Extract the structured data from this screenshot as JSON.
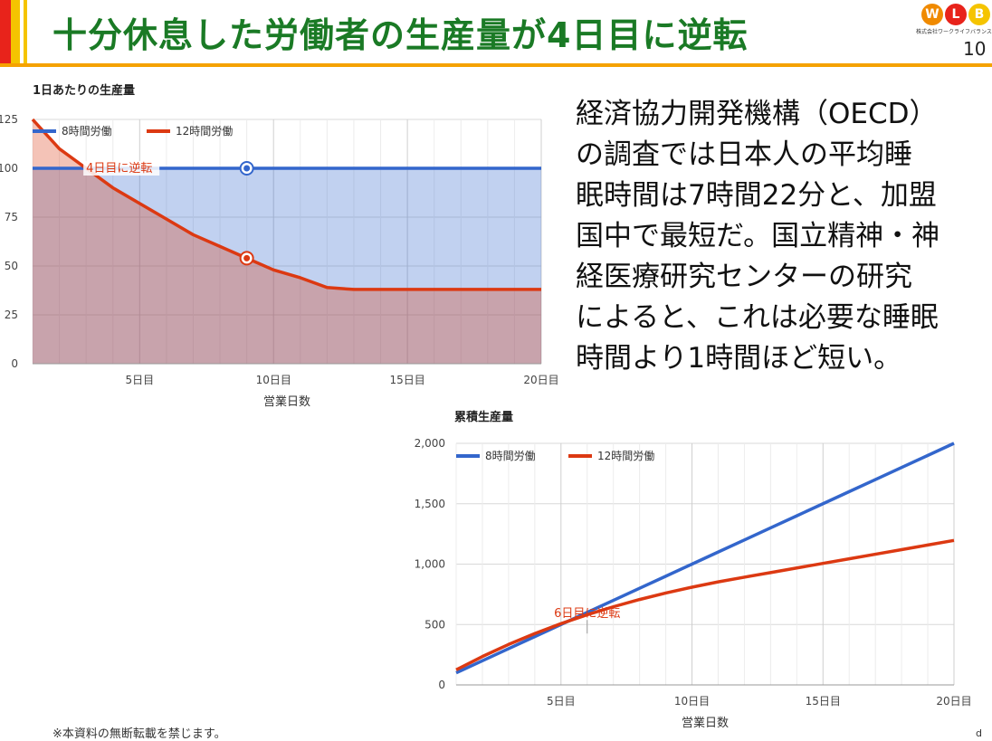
{
  "slide": {
    "title": "十分休息した労働者の生産量が4日目に逆転",
    "page_number": "10",
    "body_lines": [
      "経済協力開発機構（OECD）",
      "の調査では日本人の平均睡",
      "眠時間は7時間22分と、加盟",
      "国中で最短だ。国立精神・神",
      "経医療研究センターの研究",
      "によると、これは必要な睡眠",
      "時間より1時間ほど短い。"
    ],
    "footer_note": "※本資料の無断転載を禁じます。",
    "corner_mark": "d"
  },
  "logo": {
    "letters": [
      "W",
      "L",
      "B"
    ],
    "colors": [
      "#f08a00",
      "#e8231b",
      "#f5c400"
    ],
    "subtitle": "株式会社ワークライフバランス"
  },
  "colors": {
    "title_green": "#1a7a25",
    "accent_red": "#e8231b",
    "accent_yellow": "#f5c400",
    "series_blue": "#3366cc",
    "series_red": "#dc3912"
  },
  "chart_data": [
    {
      "type": "area",
      "title": "1日あたりの生産量",
      "xlabel": "営業日数",
      "ylabel": "",
      "x": [
        1,
        2,
        3,
        4,
        5,
        6,
        7,
        8,
        9,
        10,
        11,
        12,
        13,
        14,
        15,
        16,
        17,
        18,
        19,
        20
      ],
      "xlim": [
        1,
        20
      ],
      "ylim": [
        0,
        125
      ],
      "x_ticks": [
        5,
        10,
        15,
        20
      ],
      "x_tick_labels": [
        "5日目",
        "10日目",
        "15日目",
        "20日目"
      ],
      "y_ticks": [
        0,
        25,
        50,
        75,
        100,
        125
      ],
      "y_tick_labels": [
        "0",
        "25",
        "50",
        "75",
        "100",
        "125"
      ],
      "series": [
        {
          "name": "8時間労働",
          "color": "#3366cc",
          "values": [
            100,
            100,
            100,
            100,
            100,
            100,
            100,
            100,
            100,
            100,
            100,
            100,
            100,
            100,
            100,
            100,
            100,
            100,
            100,
            100
          ]
        },
        {
          "name": "12時間労働",
          "color": "#dc3912",
          "values": [
            125,
            110,
            100,
            90,
            82,
            74,
            66,
            60,
            54,
            48,
            44,
            39,
            38,
            38,
            38,
            38,
            38,
            38,
            38,
            38
          ]
        }
      ],
      "markers": [
        {
          "series": 0,
          "x": 9,
          "y": 100
        },
        {
          "series": 1,
          "x": 9,
          "y": 54
        }
      ],
      "annotation": {
        "text": "4日目に逆転",
        "x": 3,
        "y": 100
      },
      "legend_position": "top-left",
      "grid": true
    },
    {
      "type": "line",
      "title": "累積生産量",
      "xlabel": "営業日数",
      "ylabel": "",
      "x": [
        1,
        2,
        3,
        4,
        5,
        6,
        7,
        8,
        9,
        10,
        11,
        12,
        13,
        14,
        15,
        16,
        17,
        18,
        19,
        20
      ],
      "xlim": [
        1,
        20
      ],
      "ylim": [
        0,
        2000
      ],
      "x_ticks": [
        5,
        10,
        15,
        20
      ],
      "x_tick_labels": [
        "5日目",
        "10日目",
        "15日目",
        "20日目"
      ],
      "y_ticks": [
        0,
        500,
        1000,
        1500,
        2000
      ],
      "y_tick_labels": [
        "0",
        "500",
        "1,000",
        "1,500",
        "2,000"
      ],
      "series": [
        {
          "name": "8時間労働",
          "color": "#3366cc",
          "values": [
            100,
            200,
            300,
            400,
            500,
            600,
            700,
            800,
            900,
            1000,
            1100,
            1200,
            1300,
            1400,
            1500,
            1600,
            1700,
            1800,
            1900,
            2000
          ]
        },
        {
          "name": "12時間労働",
          "color": "#dc3912",
          "values": [
            125,
            235,
            335,
            425,
            507,
            581,
            647,
            707,
            761,
            809,
            853,
            892,
            930,
            968,
            1006,
            1044,
            1082,
            1120,
            1158,
            1196
          ]
        }
      ],
      "annotation": {
        "text": "6日目に逆転",
        "x": 6,
        "y": 590
      },
      "legend_position": "top-left",
      "grid": true
    }
  ]
}
